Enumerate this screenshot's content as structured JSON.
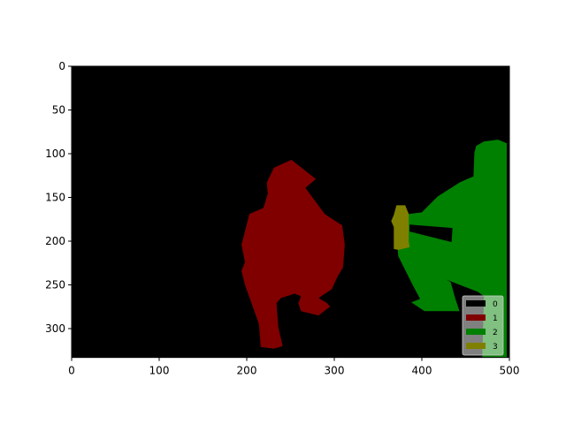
{
  "chart_data": {
    "type": "heatmap",
    "subtype": "segmentation-mask-image",
    "title": "",
    "xlabel": "",
    "ylabel": "",
    "xlim": [
      0,
      500
    ],
    "ylim": [
      333,
      0
    ],
    "image_size": [
      500,
      333
    ],
    "xticks": [
      "0",
      "100",
      "200",
      "300",
      "400",
      "500"
    ],
    "yticks": [
      "0",
      "50",
      "100",
      "150",
      "200",
      "250",
      "300"
    ],
    "grid": false,
    "background_class": "0",
    "legend": {
      "placement": "lower-right",
      "entries": [
        {
          "label": "0",
          "color": "#000000"
        },
        {
          "label": "1",
          "color": "#800000"
        },
        {
          "label": "2",
          "color": "#008000"
        },
        {
          "label": "3",
          "color": "#808000"
        }
      ]
    },
    "regions": [
      {
        "class": "1",
        "color": "#800000",
        "polygon": [
          [
            251,
            107
          ],
          [
            279,
            129
          ],
          [
            267,
            139
          ],
          [
            289,
            169
          ],
          [
            309,
            182
          ],
          [
            312,
            204
          ],
          [
            310,
            230
          ],
          [
            304,
            240
          ],
          [
            297,
            255
          ],
          [
            282,
            265
          ],
          [
            292,
            271
          ],
          [
            295,
            275
          ],
          [
            282,
            285
          ],
          [
            262,
            280
          ],
          [
            259,
            271
          ],
          [
            262,
            263
          ],
          [
            255,
            260
          ],
          [
            239,
            265
          ],
          [
            234,
            271
          ],
          [
            236,
            298
          ],
          [
            241,
            320
          ],
          [
            231,
            323
          ],
          [
            216,
            321
          ],
          [
            214,
            295
          ],
          [
            198,
            250
          ],
          [
            194,
            234
          ],
          [
            198,
            224
          ],
          [
            194,
            204
          ],
          [
            203,
            169
          ],
          [
            219,
            162
          ],
          [
            224,
            146
          ],
          [
            223,
            133
          ],
          [
            231,
            116
          ]
        ]
      },
      {
        "class": "2",
        "color": "#008000",
        "polygon": [
          [
            462,
            91
          ],
          [
            471,
            86
          ],
          [
            487,
            84
          ],
          [
            497,
            88
          ],
          [
            497,
            333
          ],
          [
            469,
            333
          ],
          [
            471,
            263
          ],
          [
            464,
            258
          ],
          [
            446,
            251
          ],
          [
            428,
            244
          ],
          [
            433,
            247
          ],
          [
            438,
            265
          ],
          [
            443,
            280
          ],
          [
            403,
            280
          ],
          [
            388,
            270
          ],
          [
            398,
            266
          ],
          [
            390,
            251
          ],
          [
            373,
            217
          ],
          [
            371,
            187
          ],
          [
            385,
            169
          ],
          [
            400,
            167
          ],
          [
            408,
            159
          ],
          [
            418,
            149
          ],
          [
            443,
            133
          ],
          [
            454,
            128
          ],
          [
            459,
            126
          ],
          [
            460,
            99
          ]
        ]
      },
      {
        "class": "0",
        "color": "#000000",
        "polygon": [
          [
            386,
            181
          ],
          [
            435,
            185
          ],
          [
            434,
            201
          ],
          [
            386,
            189
          ]
        ]
      },
      {
        "class": "3",
        "color": "#808000",
        "polygon": [
          [
            371,
            159
          ],
          [
            381,
            159
          ],
          [
            385,
            169
          ],
          [
            385,
            200
          ],
          [
            386,
            207
          ],
          [
            373,
            210
          ],
          [
            368,
            209
          ],
          [
            368,
            184
          ],
          [
            365,
            177
          ],
          [
            368,
            170
          ]
        ]
      }
    ]
  }
}
